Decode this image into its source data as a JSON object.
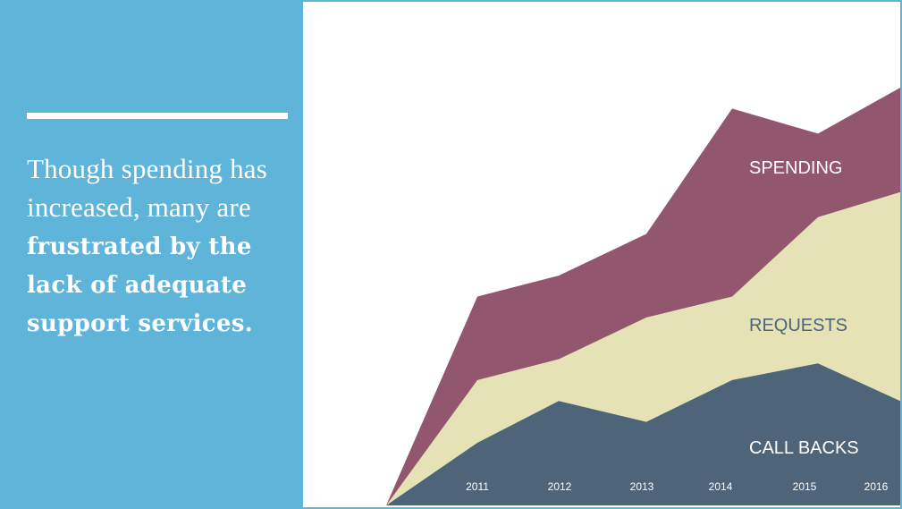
{
  "slide": {
    "headline_light": "Though spending has increased, many are",
    "headline_bold": "frustrated by the lack of adequate support services."
  },
  "colors": {
    "panel": "#5fb5d9",
    "spending": "#93566f",
    "requests": "#e5e2b6",
    "callbacks": "#4e6479"
  },
  "chart_data": {
    "type": "area",
    "x": [
      "2011",
      "2012",
      "2013",
      "2014",
      "2015",
      "2016"
    ],
    "series": [
      {
        "name": "CALL BACKS",
        "values": [
          15,
          25,
          20,
          30,
          34,
          25
        ]
      },
      {
        "name": "REQUESTS",
        "values": [
          15,
          10,
          25,
          20,
          35,
          50
        ]
      },
      {
        "name": "SPENDING",
        "values": [
          20,
          20,
          20,
          45,
          20,
          25
        ]
      }
    ],
    "stacked": true,
    "ylim": [
      0,
      100
    ],
    "grid": false,
    "legend": "inline-right"
  }
}
